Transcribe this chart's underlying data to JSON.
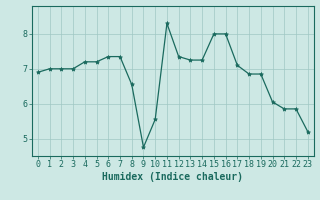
{
  "x": [
    0,
    1,
    2,
    3,
    4,
    5,
    6,
    7,
    8,
    9,
    10,
    11,
    12,
    13,
    14,
    15,
    16,
    17,
    18,
    19,
    20,
    21,
    22,
    23
  ],
  "y": [
    6.9,
    7.0,
    7.0,
    7.0,
    7.2,
    7.2,
    7.35,
    7.35,
    6.55,
    4.75,
    5.55,
    8.3,
    7.35,
    7.25,
    7.25,
    8.0,
    8.0,
    7.1,
    6.85,
    6.85,
    6.05,
    5.85,
    5.85,
    5.2
  ],
  "line_color": "#1a7a6e",
  "marker": "*",
  "marker_size": 3,
  "xlabel": "Humidex (Indice chaleur)",
  "xlim": [
    -0.5,
    23.5
  ],
  "ylim": [
    4.5,
    8.8
  ],
  "yticks": [
    5,
    6,
    7,
    8
  ],
  "xticks": [
    0,
    1,
    2,
    3,
    4,
    5,
    6,
    7,
    8,
    9,
    10,
    11,
    12,
    13,
    14,
    15,
    16,
    17,
    18,
    19,
    20,
    21,
    22,
    23
  ],
  "background_color": "#cde8e4",
  "grid_color": "#a0c8c4",
  "line_dark": "#1a6a5e",
  "label_fontsize": 7,
  "tick_fontsize": 6
}
